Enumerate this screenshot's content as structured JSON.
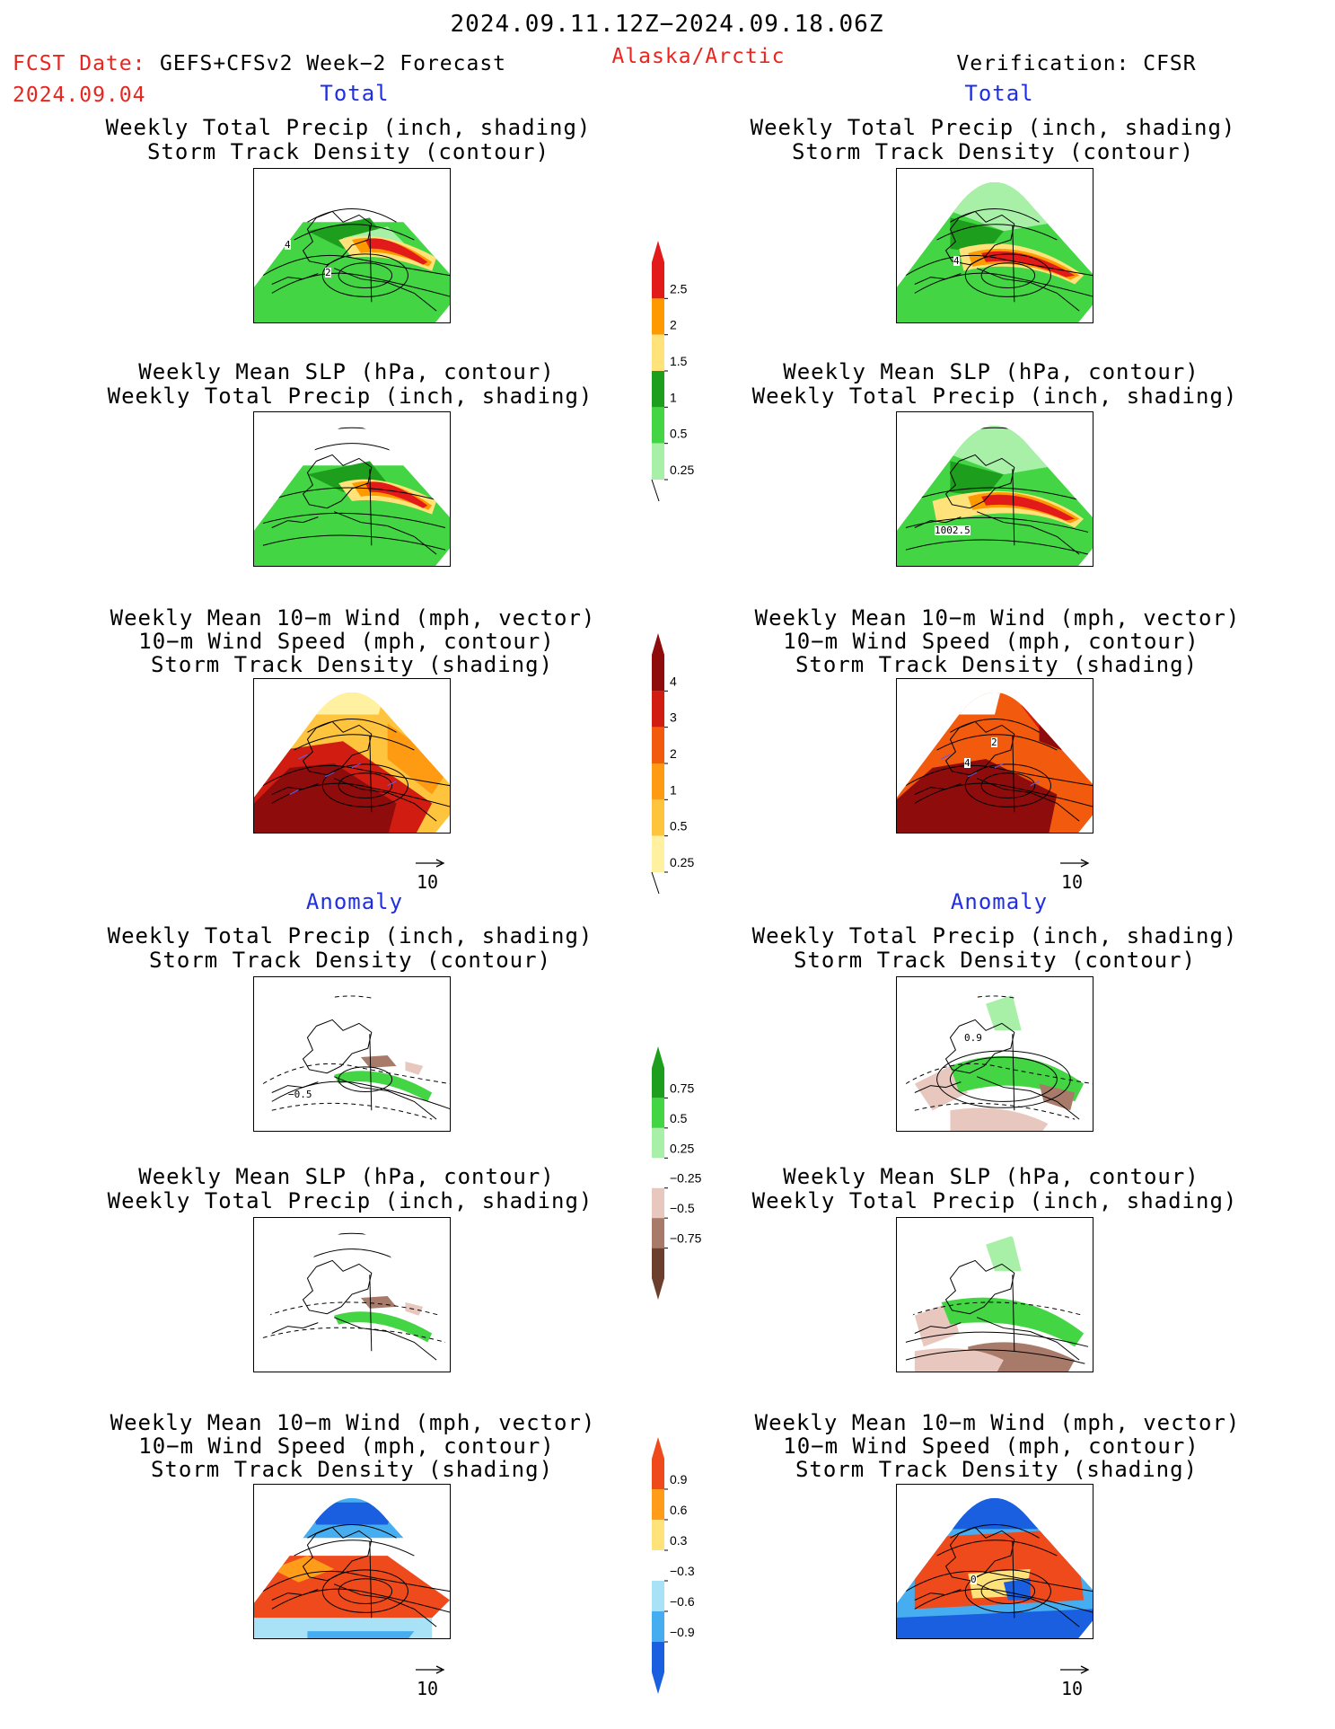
{
  "header": {
    "period": "2024.09.11.12Z−2024.09.18.06Z",
    "fcst_prefix": "FCST Date:",
    "model": "GEFS+CFSv2 Week−2 Forecast",
    "fcst_date": "2024.09.04",
    "region": "Alaska/Arctic",
    "verification": "Verification: CFSR"
  },
  "sections": {
    "total": "Total",
    "anomaly": "Anomaly"
  },
  "panel_titles": {
    "precip_track": [
      "Weekly Total Precip (inch, shading)",
      "Storm Track Density (contour)"
    ],
    "slp_precip": [
      "Weekly Mean SLP (hPa, contour)",
      "Weekly Total Precip (inch, shading)"
    ],
    "wind_track": [
      "Weekly Mean 10−m Wind (mph, vector)",
      "10−m Wind Speed (mph, contour)",
      "Storm Track Density (shading)"
    ]
  },
  "contour_labels": {
    "fc_total_track_a": "4",
    "fc_total_track_b": "2",
    "ver_total_track": "4",
    "ver_total_slp": "1002.5",
    "ver_total_wind_a": "2",
    "ver_total_wind_b": "4",
    "fc_anom_track": "−0.5",
    "ver_anom_track": "0.9",
    "ver_anom_wind": "0"
  },
  "vector_reference": "10",
  "colorbars": {
    "precip_total": {
      "labels": [
        "2.5",
        "2",
        "1.5",
        "1",
        "0.5",
        "0.25"
      ],
      "colors": [
        "#e21a1a",
        "#ff9900",
        "#ffe27a",
        "#1d9e1d",
        "#44d544",
        "#a8f0a8"
      ]
    },
    "track_total": {
      "labels": [
        "4",
        "3",
        "2",
        "1",
        "0.5",
        "0.25"
      ],
      "colors": [
        "#8e0c0c",
        "#d11c12",
        "#f25a0d",
        "#ff9b12",
        "#ffc43d",
        "#fff1a0"
      ]
    },
    "precip_anom": {
      "labels": [
        "0.75",
        "0.5",
        "0.25",
        "−0.25",
        "−0.5",
        "−0.75"
      ],
      "colors": [
        "#1d9e1d",
        "#44d544",
        "#a8f0a8",
        "#ffffff",
        "#e8c8be",
        "#a77a6a",
        "#6c3e2e"
      ]
    },
    "track_anom": {
      "labels": [
        "0.9",
        "0.6",
        "0.3",
        "−0.3",
        "−0.6",
        "−0.9"
      ],
      "colors": [
        "#ee4a1c",
        "#ff9c1a",
        "#ffe27a",
        "#ffffff",
        "#a9e2f6",
        "#46aef0",
        "#1a5fe0"
      ]
    }
  }
}
